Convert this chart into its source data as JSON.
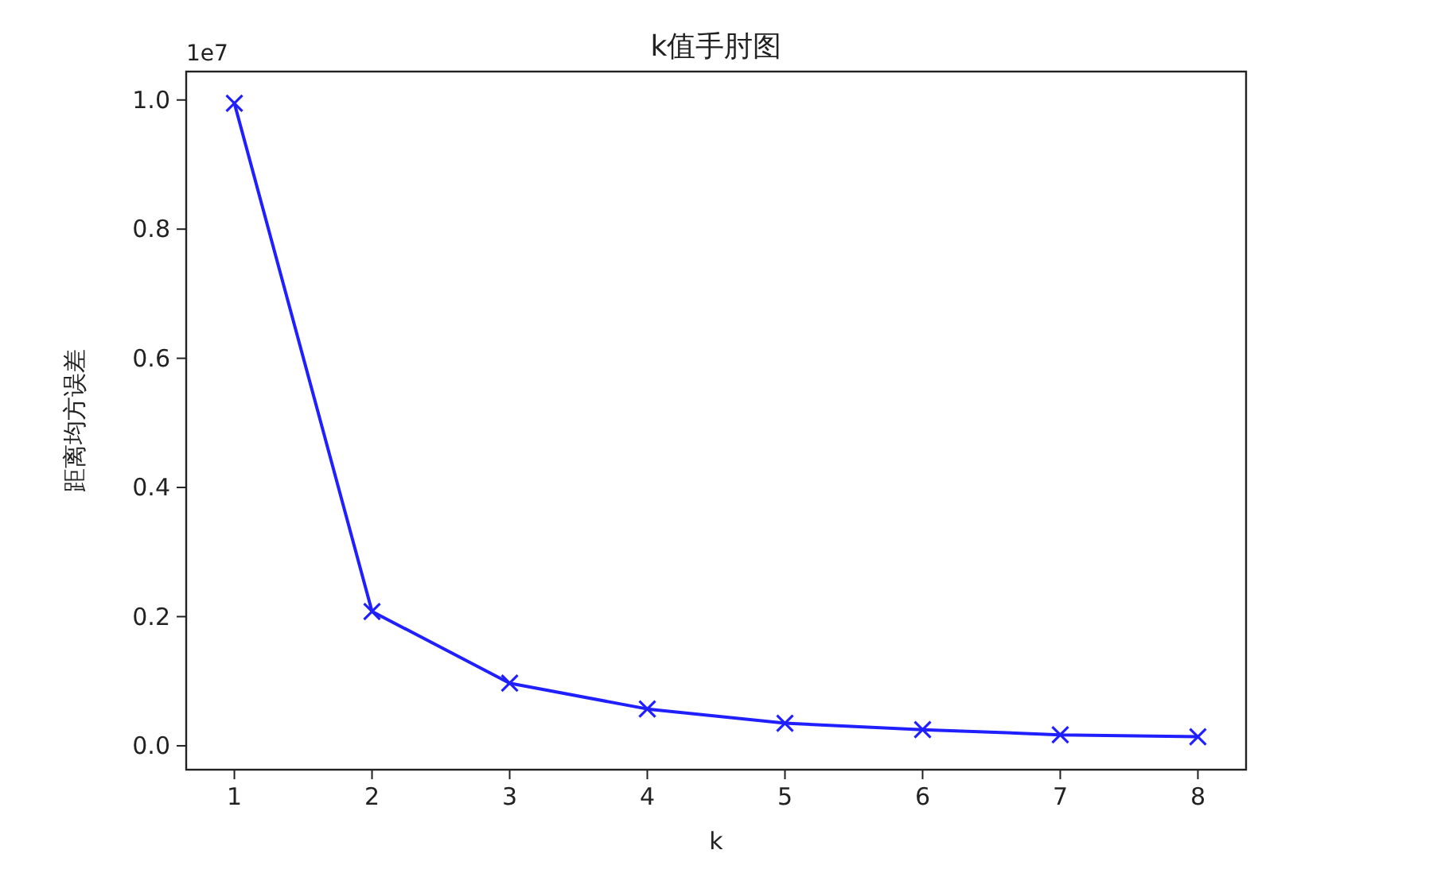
{
  "chart_data": {
    "type": "line",
    "title": "k值手肘图",
    "xlabel": "k",
    "ylabel": "距离均方误差",
    "x": [
      1,
      2,
      3,
      4,
      5,
      6,
      7,
      8
    ],
    "series": [
      {
        "color": "#1f1fff",
        "values": [
          0.995,
          0.208,
          0.097,
          0.057,
          0.035,
          0.025,
          0.017,
          0.014
        ]
      }
    ],
    "xlim": [
      0.65,
      8.35
    ],
    "xticks": [
      1,
      2,
      3,
      4,
      5,
      6,
      7,
      8
    ],
    "ylim": [
      -0.037,
      1.044
    ],
    "yticks": [
      {
        "value": 0,
        "label": "0.0"
      },
      0.2,
      0.4,
      0.6,
      0.8,
      {
        "value": 1,
        "label": "1.0"
      }
    ],
    "annotations": [
      "1e7"
    ],
    "marker": "cross",
    "line_style": "solid",
    "grid": false
  }
}
